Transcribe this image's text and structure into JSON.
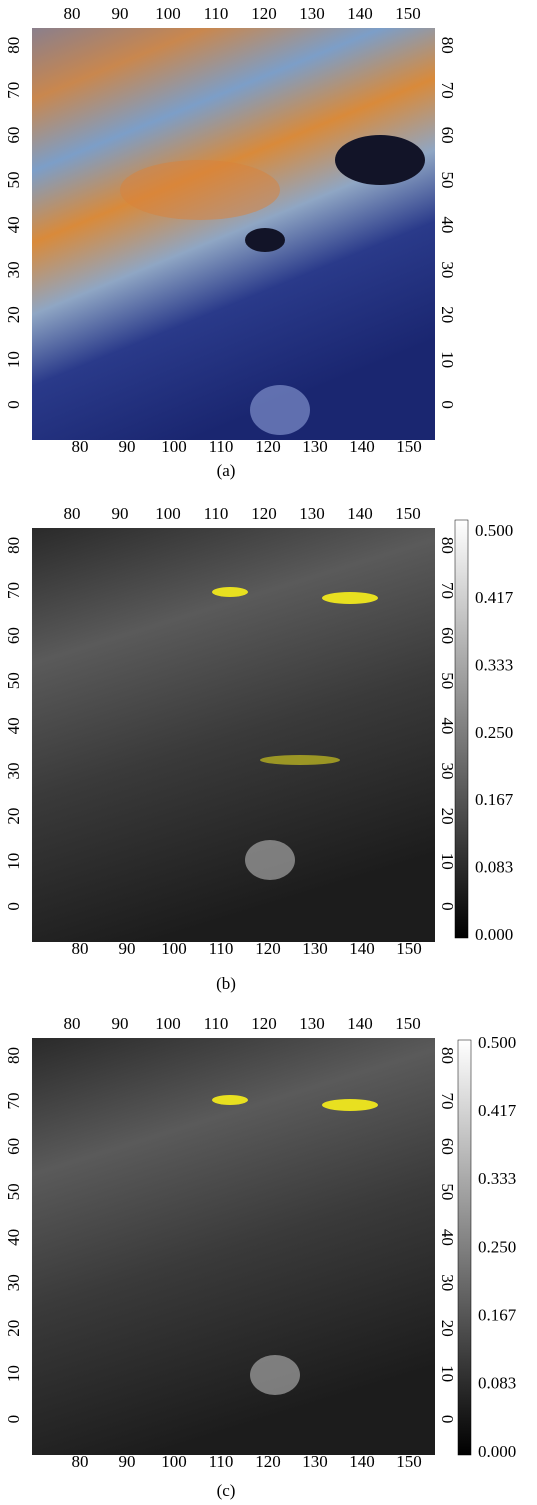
{
  "panels": [
    {
      "caption": "(a)",
      "top_ticks": [
        "80",
        "90",
        "100",
        "110",
        "120",
        "130",
        "140",
        "150"
      ],
      "bottom_ticks": [
        "80",
        "90",
        "100",
        "110",
        "120",
        "130",
        "140",
        "150"
      ],
      "left_ticks": [
        "80",
        "70",
        "60",
        "50",
        "40",
        "30",
        "20",
        "10",
        "0"
      ],
      "right_ticks": [
        "80",
        "70",
        "60",
        "50",
        "40",
        "30",
        "20",
        "10",
        "0"
      ]
    },
    {
      "caption": "(b)",
      "top_ticks": [
        "80",
        "90",
        "100",
        "110",
        "120",
        "130",
        "140",
        "150"
      ],
      "bottom_ticks": [
        "80",
        "90",
        "100",
        "110",
        "120",
        "130",
        "140",
        "150"
      ],
      "left_ticks": [
        "80",
        "70",
        "60",
        "50",
        "40",
        "30",
        "20",
        "10",
        "0"
      ],
      "right_ticks": [
        "80",
        "70",
        "60",
        "50",
        "40",
        "30",
        "20",
        "10",
        "0"
      ],
      "colorbar_ticks": [
        "0.500",
        "0.417",
        "0.333",
        "0.250",
        "0.167",
        "0.083",
        "0.000"
      ]
    },
    {
      "caption": "(c)",
      "top_ticks": [
        "80",
        "90",
        "100",
        "110",
        "120",
        "130",
        "140",
        "150"
      ],
      "bottom_ticks": [
        "80",
        "90",
        "100",
        "110",
        "120",
        "130",
        "140",
        "150"
      ],
      "left_ticks": [
        "80",
        "70",
        "60",
        "50",
        "40",
        "30",
        "20",
        "10",
        "0"
      ],
      "right_ticks": [
        "80",
        "70",
        "60",
        "50",
        "40",
        "30",
        "20",
        "10",
        "0"
      ],
      "colorbar_ticks": [
        "0.500",
        "0.417",
        "0.333",
        "0.250",
        "0.167",
        "0.083",
        "0.000"
      ]
    }
  ]
}
